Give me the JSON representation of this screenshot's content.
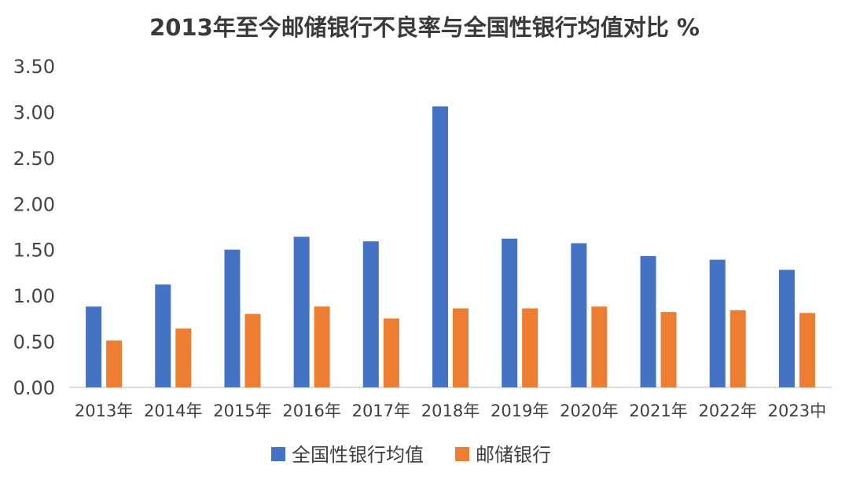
{
  "chart_data": {
    "type": "bar",
    "title": "2013年至今邮储银行不良率与全国性银行均值对比 %",
    "xlabel": "",
    "ylabel": "",
    "categories": [
      "2013年",
      "2014年",
      "2015年",
      "2016年",
      "2017年",
      "2018年",
      "2019年",
      "2020年",
      "2021年",
      "2022年",
      "2023中"
    ],
    "ylim": [
      0,
      3.5
    ],
    "yticks": [
      "0.00",
      "0.50",
      "1.00",
      "1.50",
      "2.00",
      "2.50",
      "3.00",
      "3.50"
    ],
    "grid": false,
    "legend_position": "bottom",
    "series": [
      {
        "name": "全国性银行均值",
        "color": "#4472c4",
        "values": [
          0.88,
          1.12,
          1.5,
          1.64,
          1.59,
          3.06,
          1.62,
          1.57,
          1.43,
          1.39,
          1.28
        ]
      },
      {
        "name": "邮储银行",
        "color": "#ed7d31",
        "values": [
          0.51,
          0.64,
          0.8,
          0.88,
          0.75,
          0.86,
          0.86,
          0.88,
          0.82,
          0.84,
          0.81
        ]
      }
    ]
  }
}
